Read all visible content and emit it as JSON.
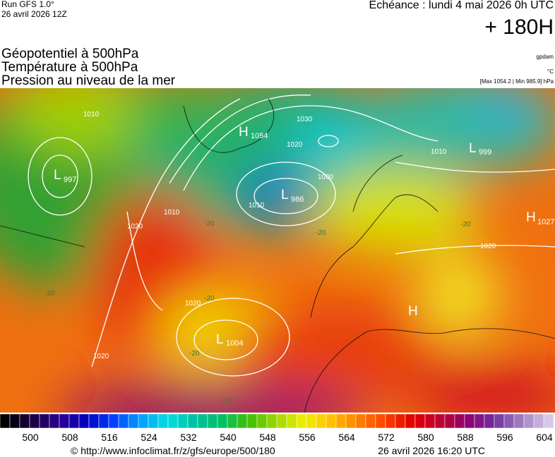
{
  "header": {
    "run": "Run GFS 1.0°",
    "run_date": "26 avril 2026 12Z",
    "forecast_time": "Echéance : lundi 4 mai 2026 0h UTC",
    "lead": "+ 180H"
  },
  "layers": [
    "Géopotentiel à 500hPa",
    "Température à 500hPa",
    "Pression au niveau de la mer"
  ],
  "units": {
    "geopotential": "gpdam",
    "temperature": "°C",
    "pressure_range": "[Max 1054.2 | Min 985.9] hPa"
  },
  "map": {
    "centers": [
      {
        "type": "H",
        "value": "1054"
      },
      {
        "type": "L",
        "value": "997"
      },
      {
        "type": "L",
        "value": "986"
      },
      {
        "type": "L",
        "value": "999"
      },
      {
        "type": "H",
        "value": "1027"
      },
      {
        "type": "L",
        "value": "1004"
      },
      {
        "type": "H"
      }
    ],
    "isobar_labels": [
      "1010",
      "1000",
      "1020",
      "1030",
      "1020",
      "1010",
      "1020",
      "1020",
      "1020",
      "1010",
      "1010"
    ],
    "temperature_labels": [
      "-20",
      "-20",
      "-20",
      "-20",
      "-20",
      "-20",
      "-10"
    ]
  },
  "colorbar": {
    "colors": [
      "#000000",
      "#1a0040",
      "#2a0090",
      "#0000c0",
      "#0040ff",
      "#00a0ff",
      "#00e0e0",
      "#00c0a0",
      "#00c060",
      "#40c000",
      "#a0d800",
      "#f0f000",
      "#ffc000",
      "#ff8000",
      "#ff4000",
      "#e00000",
      "#c00030",
      "#900070",
      "#7030a0",
      "#a080c0",
      "#d8c8e8"
    ],
    "labels": [
      "500",
      "508",
      "516",
      "524",
      "532",
      "540",
      "548",
      "556",
      "564",
      "572",
      "580",
      "588",
      "596",
      "604"
    ]
  },
  "footer": {
    "url": "© http://www.infoclimat.fr/z/gfs/europe/500/180",
    "generated": "26 avril 2026 16:20 UTC"
  }
}
